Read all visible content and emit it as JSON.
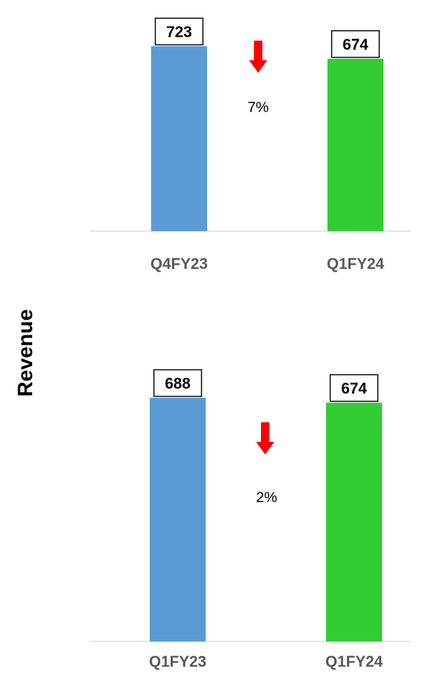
{
  "chart_data": [
    {
      "type": "bar",
      "categories": [
        "Q4FY23",
        "Q1FY24"
      ],
      "values": [
        723,
        674
      ],
      "data_labels": [
        "723",
        "674"
      ],
      "change": {
        "direction": "down",
        "label": "7%"
      },
      "colors": [
        "#5b9bd5",
        "#33cc33"
      ],
      "ylim": [
        0,
        723
      ],
      "grid": false
    },
    {
      "type": "bar",
      "categories": [
        "Q1FY23",
        "Q1FY24"
      ],
      "values": [
        688,
        674
      ],
      "data_labels": [
        "688",
        "674"
      ],
      "change": {
        "direction": "down",
        "label": "2%"
      },
      "colors": [
        "#5b9bd5",
        "#33cc33"
      ],
      "ylim": [
        0,
        688
      ],
      "grid": false
    }
  ],
  "ylabel": "Revenue",
  "colors": {
    "arrow": "#ff0000",
    "axis": "#d9d9d9",
    "category_text": "#595959"
  },
  "icons": {
    "change_indicator": "down-arrow-icon"
  }
}
